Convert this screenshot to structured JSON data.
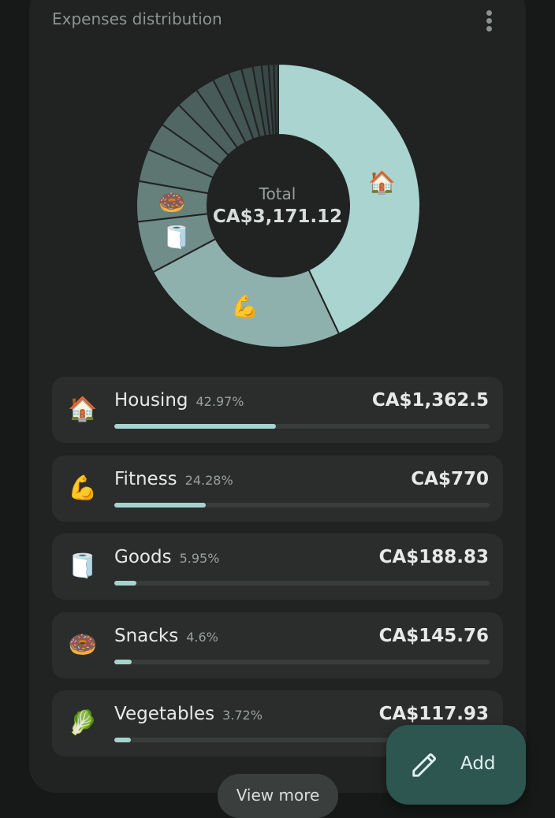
{
  "card": {
    "title": "Expenses distribution"
  },
  "chart_data": {
    "type": "pie",
    "total_label": "Total",
    "total_value": "CA$3,171.12",
    "slices": [
      {
        "category": "Housing",
        "icon": "🏠",
        "percent": 42.97,
        "color": "#a9d4d0"
      },
      {
        "category": "Fitness",
        "icon": "💪",
        "percent": 24.28,
        "color": "#8fb1ad"
      },
      {
        "category": "Goods",
        "icon": "🧻",
        "percent": 5.95,
        "color": "#708d89"
      },
      {
        "category": "Snacks",
        "icon": "🍩",
        "percent": 4.6,
        "color": "#66807c"
      },
      {
        "category": "Vegetables",
        "icon": "",
        "percent": 3.72,
        "color": "#5d7672"
      },
      {
        "category": "",
        "icon": "",
        "percent": 3.2,
        "color": "#566d6a"
      },
      {
        "category": "",
        "icon": "",
        "percent": 2.9,
        "color": "#516764"
      },
      {
        "category": "",
        "icon": "",
        "percent": 2.6,
        "color": "#4c605d"
      },
      {
        "category": "",
        "icon": "",
        "percent": 2.2,
        "color": "#485b58"
      },
      {
        "category": "",
        "icon": "",
        "percent": 1.9,
        "color": "#445653"
      },
      {
        "category": "",
        "icon": "",
        "percent": 1.5,
        "color": "#40524f"
      },
      {
        "category": "",
        "icon": "",
        "percent": 1.3,
        "color": "#3d4e4b"
      },
      {
        "category": "",
        "icon": "",
        "percent": 1.0,
        "color": "#3a4a48"
      },
      {
        "category": "",
        "icon": "",
        "percent": 0.8,
        "color": "#374745"
      },
      {
        "category": "",
        "icon": "",
        "percent": 0.6,
        "color": "#354442"
      },
      {
        "category": "",
        "icon": "",
        "percent": 0.5,
        "color": "#334240"
      }
    ]
  },
  "categories": [
    {
      "name": "Housing",
      "icon": "🏠",
      "icon_name": "house-icon",
      "percent_label": "42.97%",
      "amount": "CA$1,362.5",
      "progress": 0.4297
    },
    {
      "name": "Fitness",
      "icon": "💪",
      "icon_name": "flexed-biceps-icon",
      "percent_label": "24.28%",
      "amount": "CA$770",
      "progress": 0.2428
    },
    {
      "name": "Goods",
      "icon": "🧻",
      "icon_name": "toilet-paper-icon",
      "percent_label": "5.95%",
      "amount": "CA$188.83",
      "progress": 0.0595
    },
    {
      "name": "Snacks",
      "icon": "🍩",
      "icon_name": "doughnut-icon",
      "percent_label": "4.6%",
      "amount": "CA$145.76",
      "progress": 0.046
    },
    {
      "name": "Vegetables",
      "icon": "🥬",
      "icon_name": "leafy-green-icon",
      "percent_label": "3.72%",
      "amount": "CA$117.93",
      "progress": 0.0372
    }
  ],
  "actions": {
    "view_more": "View more",
    "add": "Add"
  },
  "colors": {
    "accent": "#a7d3cf",
    "fab": "#2d5650",
    "card": "#202322",
    "row": "#2a2d2c"
  }
}
